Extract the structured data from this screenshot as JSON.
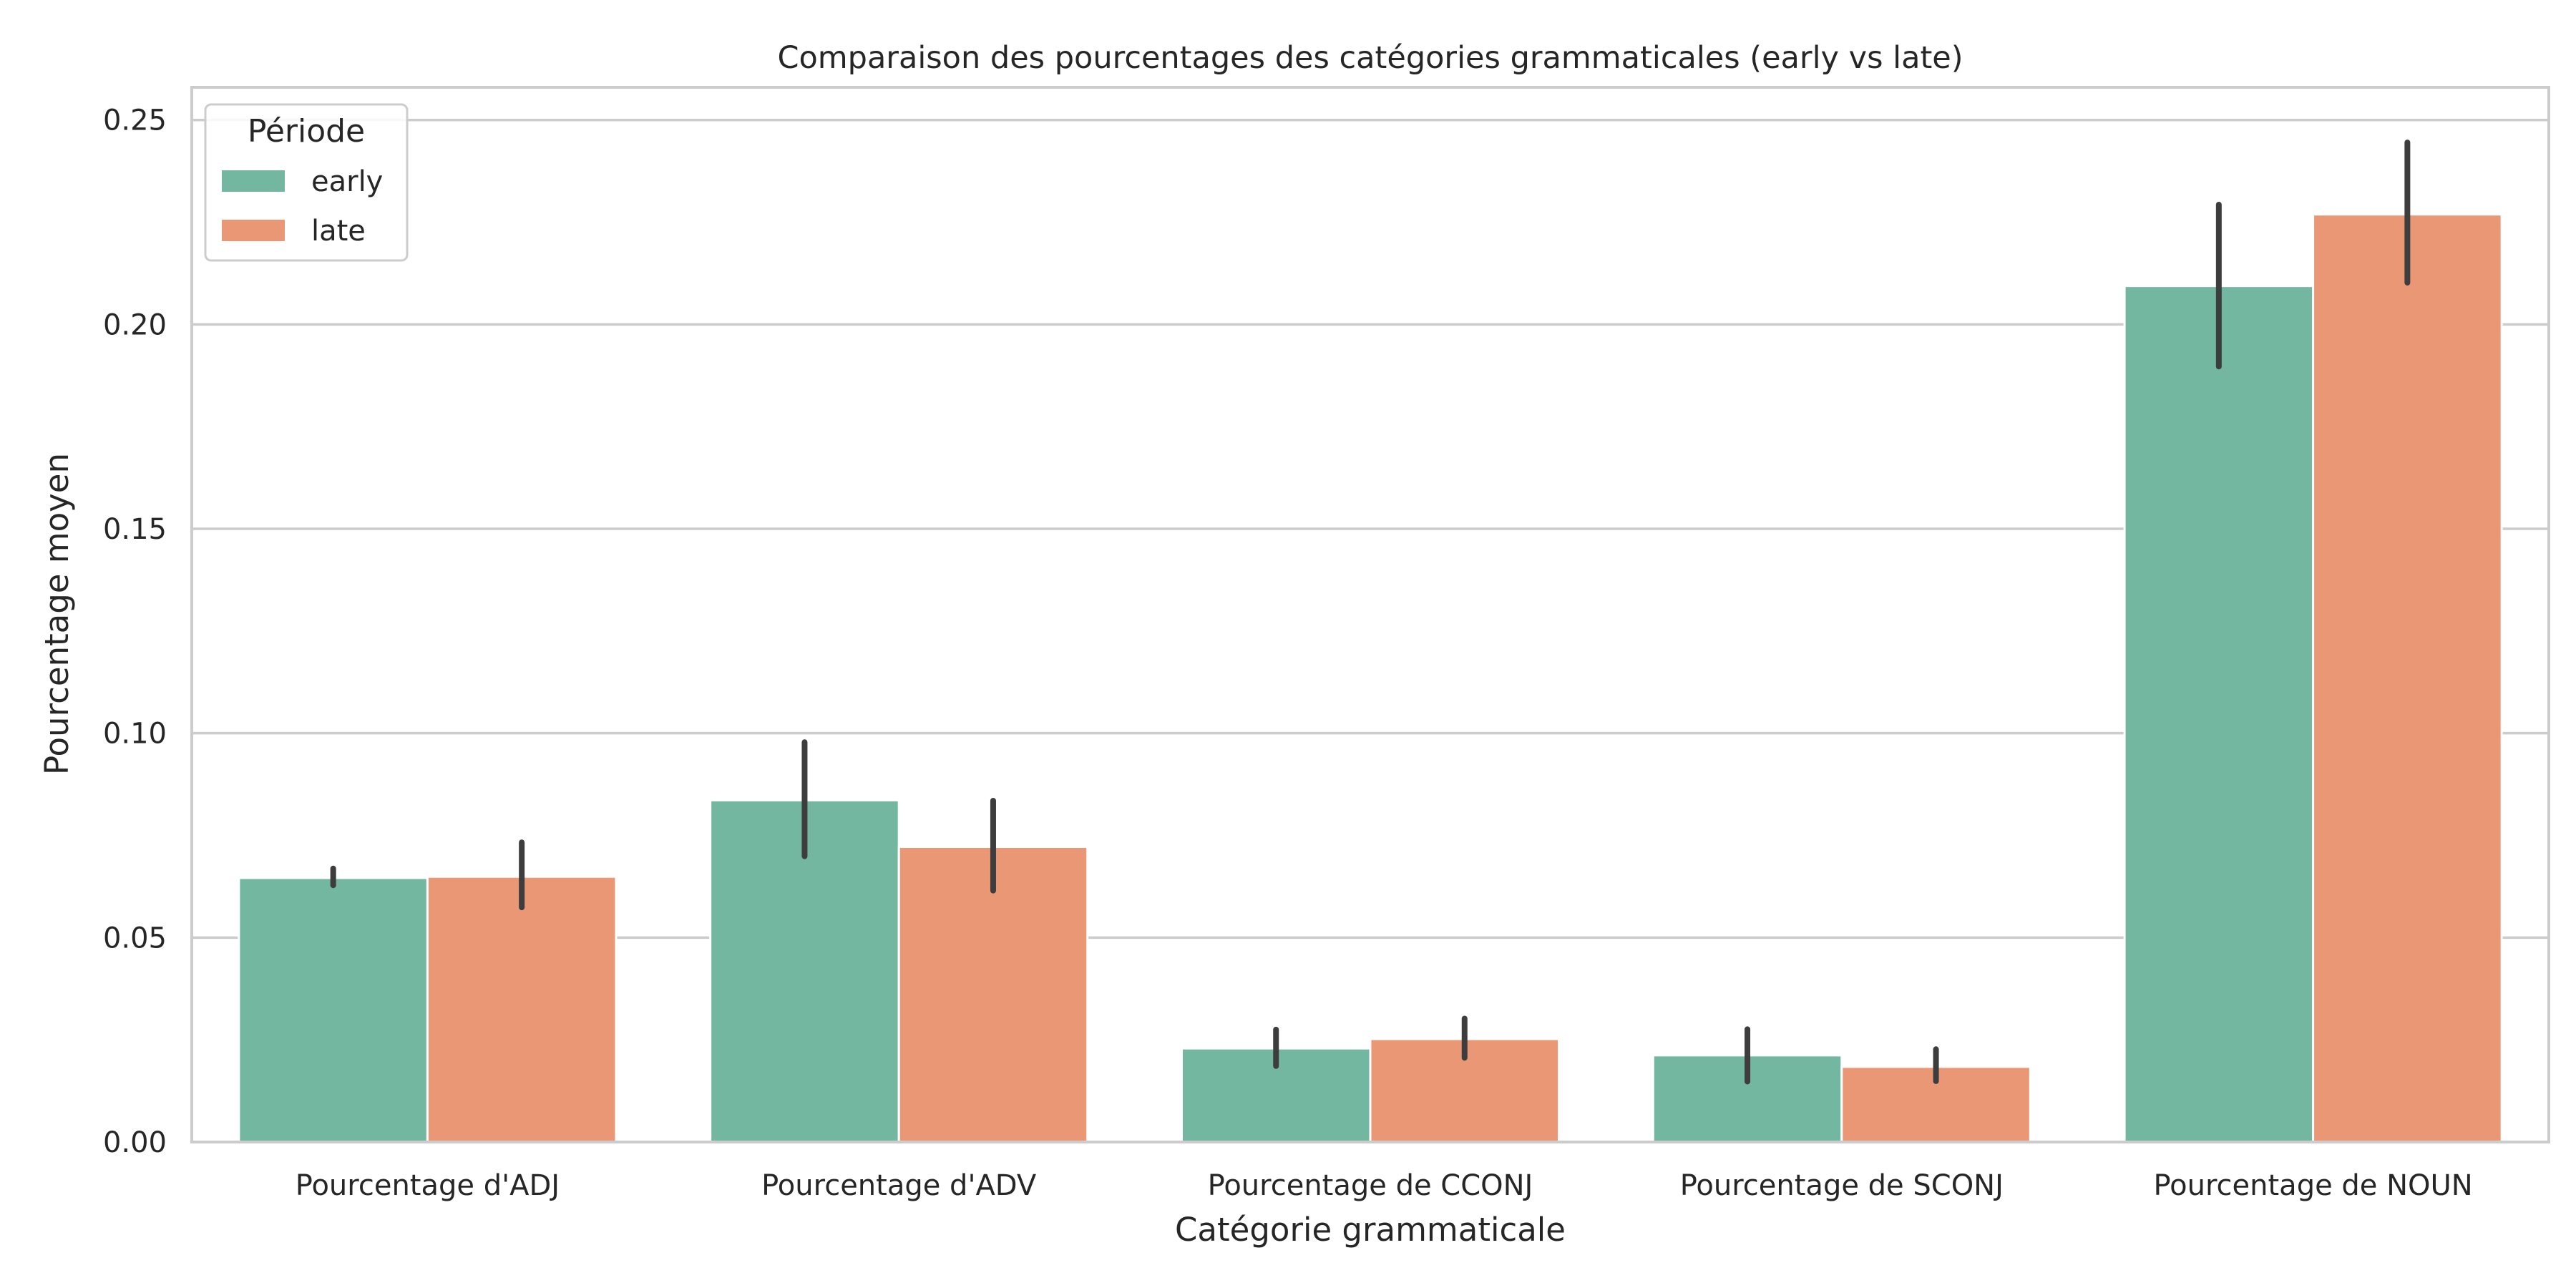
{
  "chart_data": {
    "type": "bar",
    "title": "Comparaison des pourcentages des catégories grammaticales (early vs late)",
    "xlabel": "Catégorie grammaticale",
    "ylabel": "Pourcentage moyen",
    "categories": [
      "Pourcentage d'ADJ",
      "Pourcentage d'ADV",
      "Pourcentage de CCONJ",
      "Pourcentage de SCONJ",
      "Pourcentage de NOUN"
    ],
    "ylim": [
      0,
      0.258
    ],
    "yticks": [
      0.0,
      0.05,
      0.1,
      0.15,
      0.2,
      0.25
    ],
    "ytick_labels": [
      "0.00",
      "0.05",
      "0.10",
      "0.15",
      "0.20",
      "0.25"
    ],
    "grid": "horizontal",
    "legend": {
      "title": "Période",
      "placement": "top-left"
    },
    "series": [
      {
        "name": "early",
        "color": "#73b7a0",
        "values": [
          0.0646,
          0.0836,
          0.0229,
          0.0212,
          0.2094
        ],
        "ci_low": [
          0.0628,
          0.0699,
          0.0186,
          0.0148,
          0.1897
        ],
        "ci_high": [
          0.0669,
          0.0978,
          0.0275,
          0.0276,
          0.2293
        ]
      },
      {
        "name": "late",
        "color": "#ea9775",
        "values": [
          0.0649,
          0.0722,
          0.0252,
          0.0184,
          0.2269
        ],
        "ci_low": [
          0.0574,
          0.0615,
          0.0206,
          0.0149,
          0.2102
        ],
        "ci_high": [
          0.0733,
          0.0835,
          0.0302,
          0.0227,
          0.2445
        ]
      }
    ]
  }
}
